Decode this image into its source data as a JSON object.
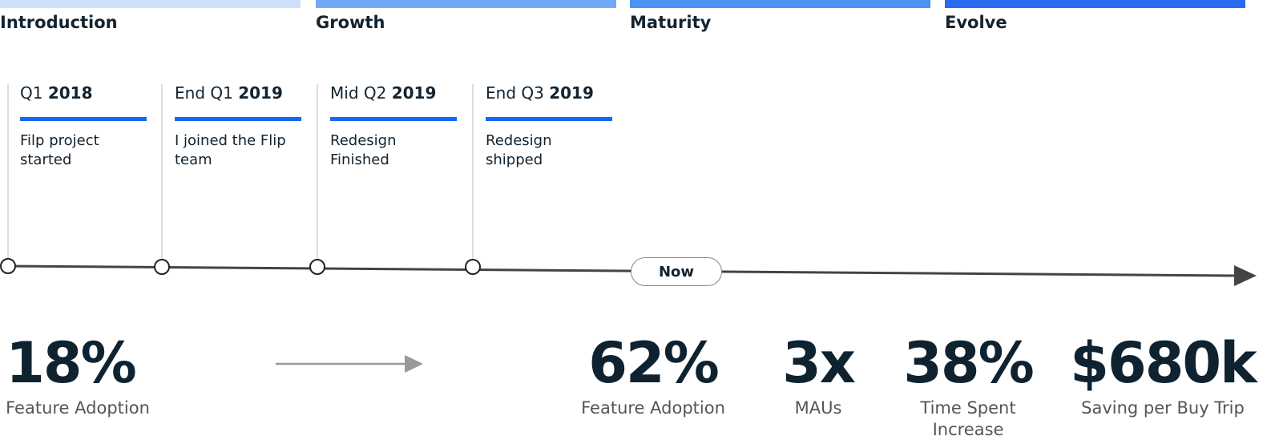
{
  "phases": [
    {
      "name": "Introduction",
      "color": "#cfe0fb"
    },
    {
      "name": "Growth",
      "color": "#72a9f7"
    },
    {
      "name": "Maturity",
      "color": "#4a92f3"
    },
    {
      "name": "Evolve",
      "color": "#2b6bf0"
    }
  ],
  "milestones": [
    {
      "period": "Q1",
      "year": "2018",
      "description": "Filp project started"
    },
    {
      "period": "End Q1",
      "year": "2019",
      "description": "I joined the Flip team"
    },
    {
      "period": "Mid Q2",
      "year": "2019",
      "description": "Redesign Finished"
    },
    {
      "period": "End Q3",
      "year": "2019",
      "description": "Redesign shipped"
    }
  ],
  "now": "Now",
  "before_metric": {
    "value": "18%",
    "label": "Feature Adoption"
  },
  "metrics": [
    {
      "value": "62%",
      "label": "Feature Adoption"
    },
    {
      "value": "3x",
      "label": "MAUs"
    },
    {
      "value": "38%",
      "label": "Time Spent Increase"
    },
    {
      "value": "$680k",
      "label": "Saving per Buy Trip"
    }
  ]
}
